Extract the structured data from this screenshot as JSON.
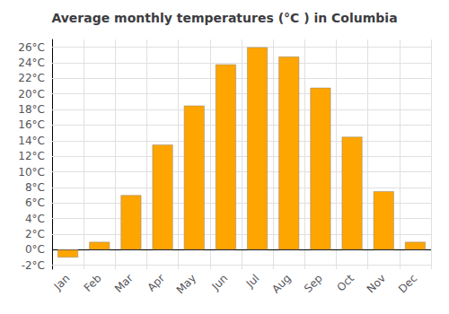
{
  "chart_data": {
    "type": "bar",
    "title": "Average monthly temperatures (°C ) in Columbia",
    "categories": [
      "Jan",
      "Feb",
      "Mar",
      "Apr",
      "May",
      "Jun",
      "Jul",
      "Aug",
      "Sep",
      "Oct",
      "Nov",
      "Dec"
    ],
    "values": [
      -1.0,
      1.0,
      7.0,
      13.5,
      18.5,
      23.8,
      26.0,
      24.8,
      20.8,
      14.5,
      7.5,
      1.0
    ],
    "color": "#FFA500",
    "ylim": [
      -2.5,
      27
    ],
    "yticks": [
      {
        "value": -2,
        "label": "-2°C"
      },
      {
        "value": 0,
        "label": "0°C"
      },
      {
        "value": 2,
        "label": "2°C"
      },
      {
        "value": 4,
        "label": "4°C"
      },
      {
        "value": 6,
        "label": "6°C"
      },
      {
        "value": 8,
        "label": "8°C"
      },
      {
        "value": 10,
        "label": "10°C"
      },
      {
        "value": 12,
        "label": "12°C"
      },
      {
        "value": 14,
        "label": "14°C"
      },
      {
        "value": 16,
        "label": "16°C"
      },
      {
        "value": 18,
        "label": "18°C"
      },
      {
        "value": 20,
        "label": "20°C"
      },
      {
        "value": 22,
        "label": "22°C"
      },
      {
        "value": 24,
        "label": "24°C"
      },
      {
        "value": 26,
        "label": "26°C"
      }
    ],
    "grid": true
  }
}
